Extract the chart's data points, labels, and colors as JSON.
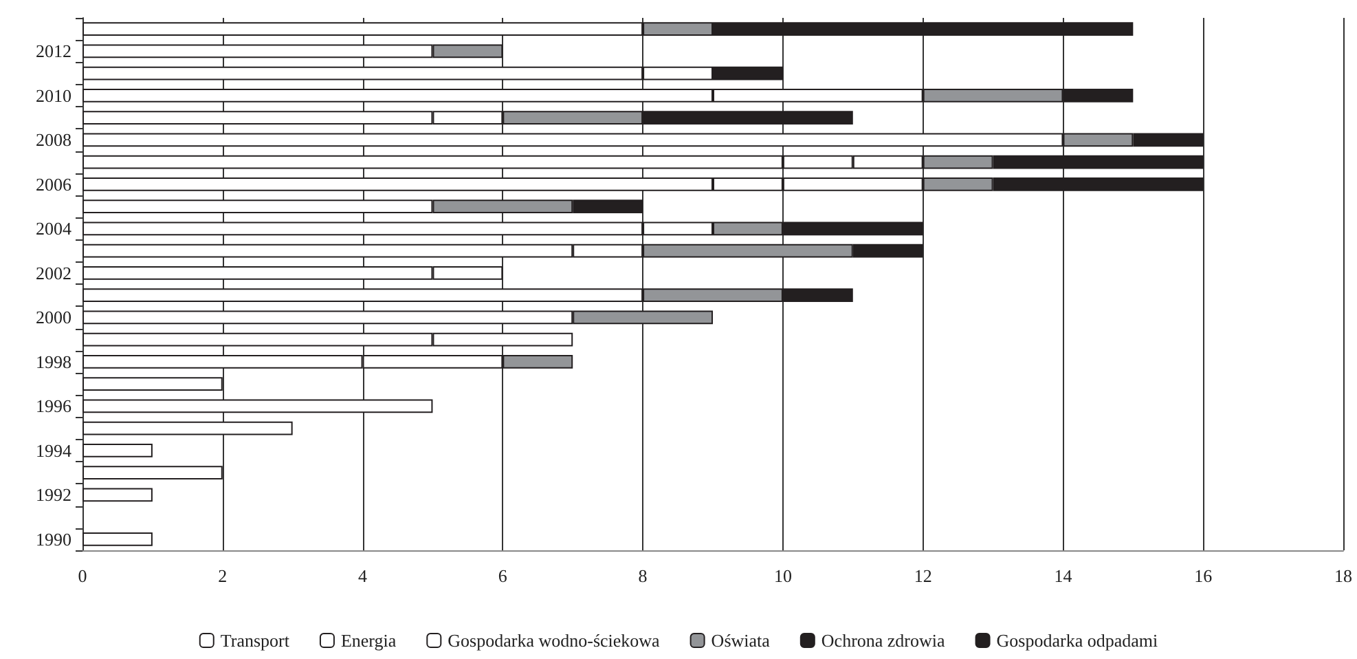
{
  "chart_data": {
    "type": "bar",
    "orientation": "horizontal",
    "stacked": true,
    "categories": [
      null,
      "2012",
      null,
      "2010",
      null,
      "2008",
      null,
      "2006",
      null,
      "2004",
      null,
      "2002",
      null,
      "2000",
      null,
      "1998",
      null,
      "1996",
      null,
      "1994",
      null,
      "1992",
      null,
      "1990"
    ],
    "series": [
      {
        "name": "Transport",
        "color": "#ffffff",
        "values": [
          8,
          5,
          8,
          9,
          5,
          14,
          10,
          9,
          5,
          8,
          7,
          5,
          8,
          7,
          5,
          4,
          2,
          5,
          3,
          1,
          2,
          1,
          null,
          1
        ]
      },
      {
        "name": "Energia",
        "color": "#ffffff",
        "values": [
          null,
          null,
          1,
          3,
          1,
          null,
          1,
          1,
          null,
          1,
          1,
          1,
          null,
          null,
          2,
          2,
          null,
          null,
          null,
          null,
          null,
          null,
          null,
          null
        ]
      },
      {
        "name": "Gospodarka wodno-ściekowa",
        "color": "#ffffff",
        "values": [
          null,
          null,
          null,
          null,
          null,
          null,
          1,
          2,
          null,
          null,
          null,
          null,
          null,
          null,
          null,
          null,
          null,
          null,
          null,
          null,
          null,
          null,
          null,
          null
        ]
      },
      {
        "name": "Oświata",
        "color": "#939598",
        "values": [
          1,
          1,
          null,
          2,
          2,
          1,
          1,
          1,
          2,
          1,
          3,
          null,
          2,
          2,
          null,
          1,
          null,
          null,
          null,
          null,
          null,
          null,
          null,
          null
        ]
      },
      {
        "name": "Ochrona zdrowia",
        "color": "#231f20",
        "values": [
          6,
          null,
          1,
          1,
          3,
          1,
          3,
          3,
          1,
          2,
          1,
          null,
          1,
          null,
          null,
          null,
          null,
          null,
          null,
          null,
          null,
          null,
          null,
          null
        ]
      },
      {
        "name": "Gospodarka odpadami",
        "color": "#231f20",
        "values": [
          null,
          null,
          null,
          null,
          null,
          null,
          null,
          null,
          null,
          null,
          null,
          null,
          null,
          null,
          null,
          null,
          null,
          null,
          null,
          null,
          null,
          null,
          null,
          null
        ]
      }
    ],
    "xlim": [
      0,
      18
    ],
    "xticks": [
      0,
      2,
      4,
      6,
      8,
      10,
      12,
      14,
      16,
      18
    ],
    "grid": "x",
    "legend": "bottom"
  }
}
